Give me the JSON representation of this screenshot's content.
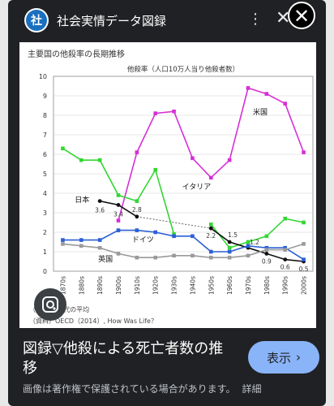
{
  "header": {
    "logo_char": "社",
    "site_title": "社会実情データ図録",
    "menu_icon": "more-vert-icon",
    "close_icon": "close-icon",
    "overlay_close_icon": "close-icon"
  },
  "figure": {
    "title": "主要国の他殺率の長期推移",
    "source_note_1": "（注）10年代の平均",
    "source_note_2": "（資料）OECD（2014）, How Was Life？"
  },
  "chart_data": {
    "type": "line",
    "title": "他殺率（人口10万人当り他殺者数）",
    "categories": [
      "1870s",
      "1880s",
      "1890s",
      "1900s",
      "1910s",
      "1920s",
      "1930s",
      "1940s",
      "1950s",
      "1960s",
      "1970s",
      "1980s",
      "1990s",
      "2000s"
    ],
    "ylim": [
      0,
      10
    ],
    "yticks": [
      0,
      1,
      2,
      3,
      4,
      5,
      6,
      7,
      8,
      9,
      10
    ],
    "grid": true,
    "series": [
      {
        "name": "米国",
        "color": "#d62fd6",
        "values": [
          null,
          null,
          null,
          2.6,
          6.1,
          8.1,
          8.2,
          5.8,
          4.8,
          5.7,
          9.4,
          9.1,
          8.6,
          6.1
        ]
      },
      {
        "name": "イタリア",
        "color": "#33d633",
        "values": [
          6.3,
          5.7,
          5.7,
          3.9,
          3.6,
          5.2,
          1.9,
          null,
          2.4,
          1.2,
          1.5,
          1.8,
          2.7,
          2.5
        ]
      },
      {
        "name": "日本",
        "color": "#111111",
        "values": [
          null,
          null,
          3.6,
          3.4,
          2.8,
          null,
          null,
          null,
          2.2,
          1.5,
          1.2,
          0.9,
          0.6,
          0.5
        ]
      },
      {
        "name": "ドイツ",
        "color": "#2b5fd6",
        "values": [
          1.6,
          1.6,
          1.6,
          2.1,
          2.1,
          2.0,
          1.8,
          1.8,
          1.0,
          1.0,
          1.3,
          1.2,
          1.2,
          0.6
        ]
      },
      {
        "name": "英国",
        "color": "#9a9a9a",
        "values": [
          1.4,
          1.3,
          1.2,
          0.9,
          0.7,
          0.7,
          0.8,
          0.8,
          0.7,
          0.7,
          0.8,
          1.1,
          1.1,
          1.4
        ]
      }
    ],
    "data_labels": [
      {
        "series": "日本",
        "index": 2,
        "text": "3.6"
      },
      {
        "series": "日本",
        "index": 3,
        "text": "3.4"
      },
      {
        "series": "日本",
        "index": 4,
        "text": "2.8"
      },
      {
        "series": "日本",
        "index": 8,
        "text": "2.2"
      },
      {
        "series": "日本",
        "index": 9,
        "text": "1.5"
      },
      {
        "series": "日本",
        "index": 10,
        "text": "1.2"
      },
      {
        "series": "日本",
        "index": 11,
        "text": "0.9"
      },
      {
        "series": "日本",
        "index": 12,
        "text": "0.6"
      },
      {
        "series": "日本",
        "index": 13,
        "text": "0.5"
      }
    ]
  },
  "caption": {
    "text": "図録▽他殺による死亡者数の推移",
    "button_label": "表示",
    "notice": "画像は著作権で保護されている場合があります。",
    "notice_link": "詳細"
  }
}
